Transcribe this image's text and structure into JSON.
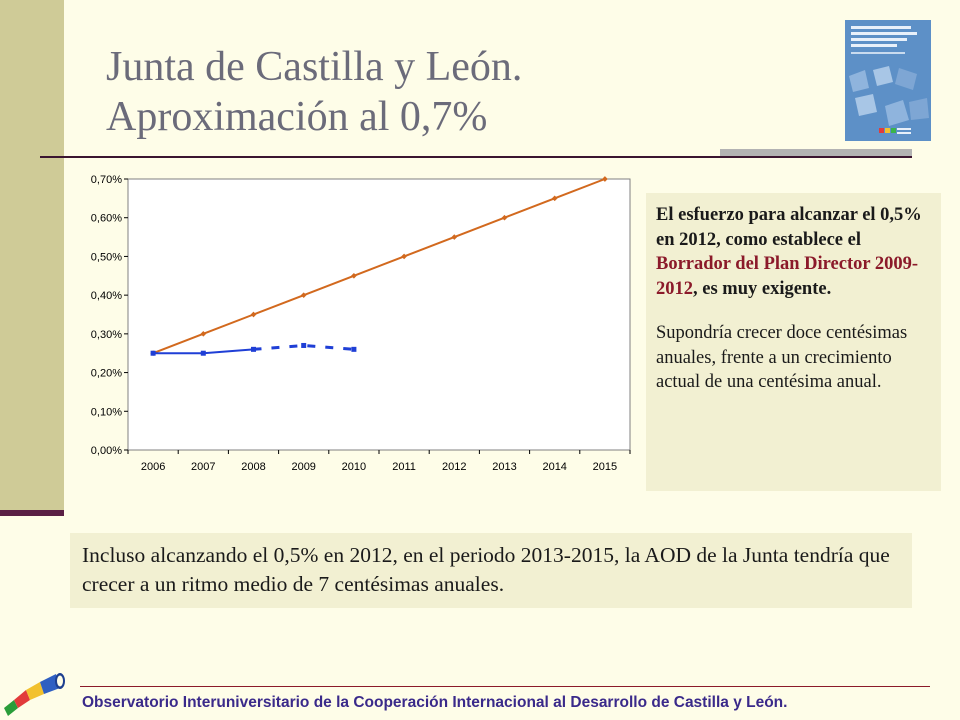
{
  "slide": {
    "title_line1": "Junta de Castilla y León.",
    "title_line2": "Aproximación al 0,7%",
    "cover_icon": "report-cover-image",
    "accent_color": "#8b1a2a"
  },
  "side_note": {
    "bold_part1": "El esfuerzo para alcanzar el 0,5% en 2012, como establece el ",
    "bold_link": "Borrador del Plan Director 2009-2012",
    "bold_part2": ", es muy exigente.",
    "paragraph2": "Supondría crecer doce centésimas anuales, frente a un crecimiento actual de una centésima anual."
  },
  "bottom_note": {
    "text": "Incluso alcanzando el 0,5% en 2012, en el periodo 2013-2015, la AOD de la Junta tendría que crecer a un ritmo medio de 7 centésimas anuales."
  },
  "footer": {
    "text": "Observatorio Interuniversitario de la Cooperación Internacional al Desarrollo de Castilla y León.",
    "logo_icon": "observatory-logo"
  },
  "chart_data": {
    "type": "line",
    "categories": [
      "2006",
      "2007",
      "2008",
      "2009",
      "2010",
      "2011",
      "2012",
      "2013",
      "2014",
      "2015"
    ],
    "ylim": [
      0,
      0.7
    ],
    "yticks": [
      "0,00%",
      "0,10%",
      "0,20%",
      "0,30%",
      "0,40%",
      "0,50%",
      "0,60%",
      "0,70%"
    ],
    "grid": false,
    "series": [
      {
        "color": "#d2691e",
        "style": "solid",
        "values": [
          0.25,
          0.3,
          0.35,
          0.4,
          0.45,
          0.5,
          0.55,
          0.6,
          0.65,
          0.7
        ]
      },
      {
        "color": "#1f3fd6",
        "style": "solid",
        "values": [
          0.25,
          0.25,
          0.26,
          null,
          null,
          null,
          null,
          null,
          null,
          null
        ]
      },
      {
        "color": "#1f3fd6",
        "style": "dashed",
        "values": [
          null,
          null,
          0.26,
          0.27,
          0.26,
          null,
          null,
          null,
          null,
          null
        ]
      }
    ]
  }
}
